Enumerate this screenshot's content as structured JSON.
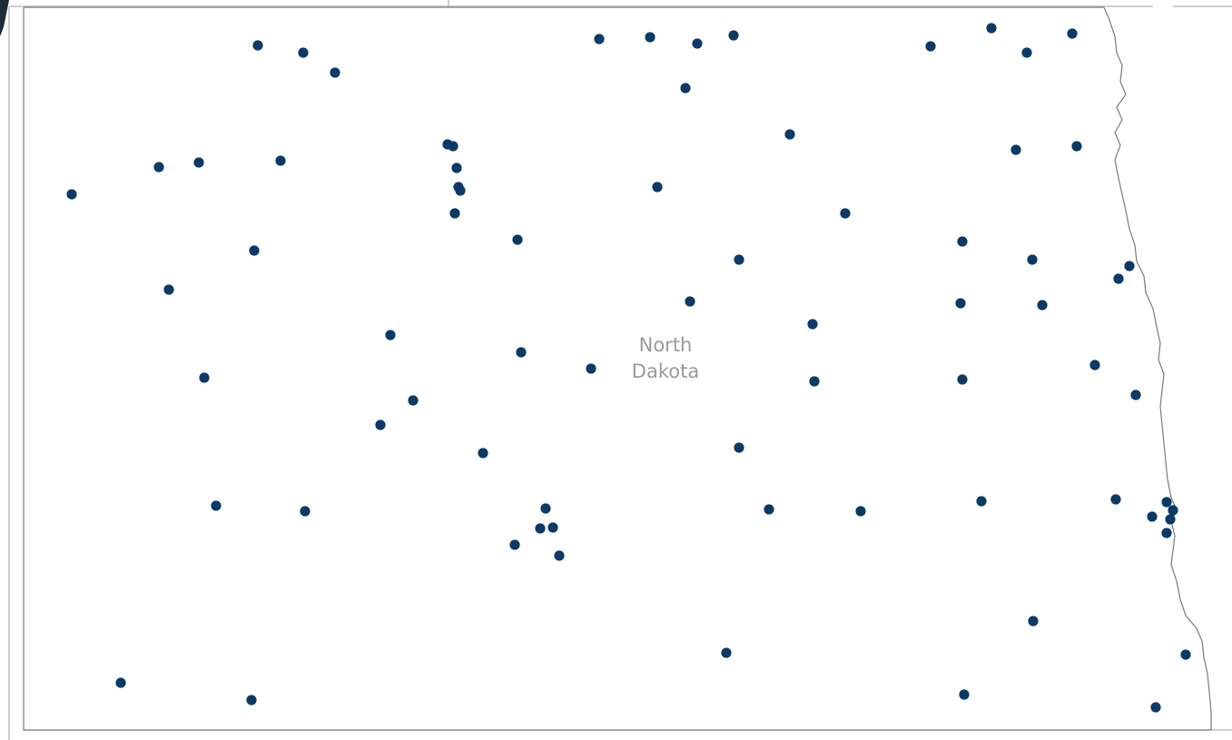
{
  "map": {
    "state_label_line1": "North",
    "state_label_line2": "Dakota",
    "marker_color": "#0b3a66",
    "border_color": "#8f8f8f",
    "river_border_color": "#7a7a7a",
    "background_color": "#ffffff",
    "marker_icon": "location-dot-icon"
  }
}
